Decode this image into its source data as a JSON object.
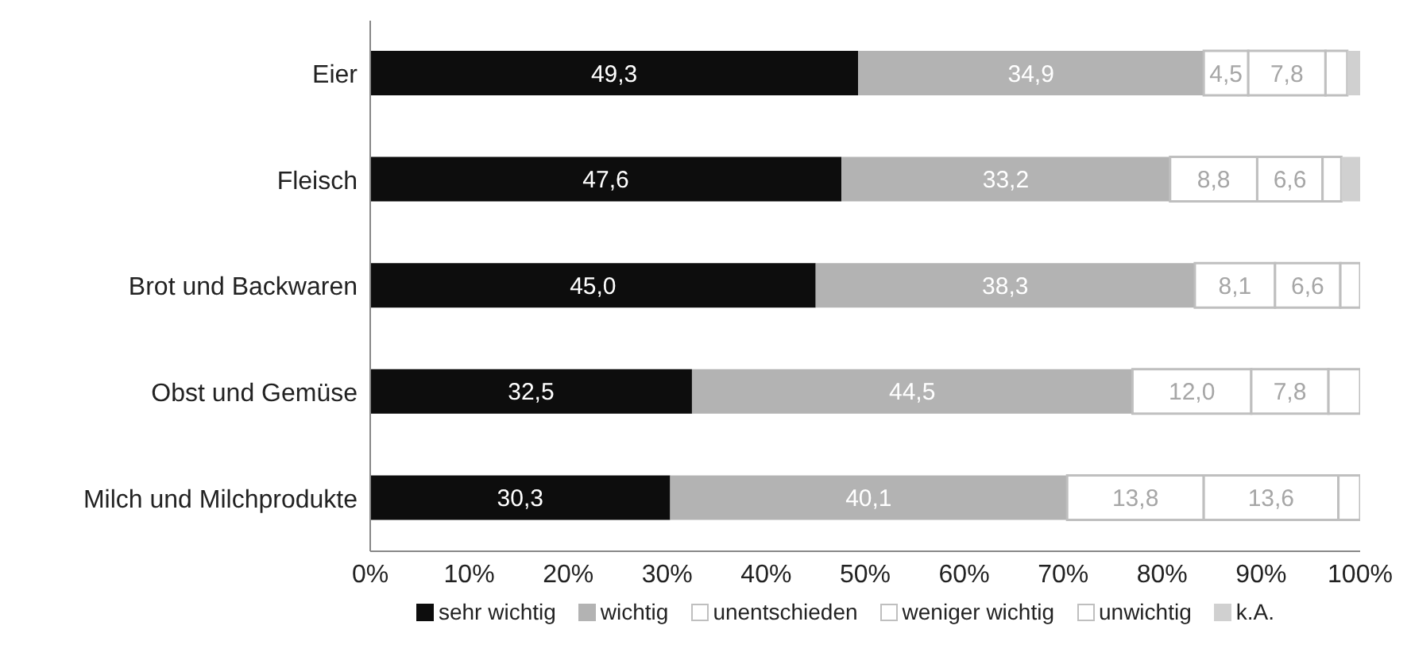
{
  "chart_data": {
    "type": "bar",
    "orientation": "horizontal",
    "stacked": true,
    "categories": [
      "Eier",
      "Fleisch",
      "Brot und Backwaren",
      "Obst und Gemüse",
      "Milch und Milchprodukte"
    ],
    "series": [
      {
        "name": "sehr wichtig",
        "color": "#0d0d0d",
        "values": [
          49.3,
          47.6,
          45.0,
          32.5,
          30.3
        ],
        "value_labels": [
          "49,3",
          "47,6",
          "45,0",
          "32,5",
          "30,3"
        ]
      },
      {
        "name": "wichtig",
        "color": "#b3b3b3",
        "values": [
          34.9,
          33.2,
          38.3,
          44.5,
          40.1
        ],
        "value_labels": [
          "34,9",
          "33,2",
          "38,3",
          "44,5",
          "40,1"
        ]
      },
      {
        "name": "unentschieden",
        "color": "#ffffff",
        "values": [
          4.5,
          8.8,
          8.1,
          12.0,
          13.8
        ],
        "value_labels": [
          "4,5",
          "8,8",
          "8,1",
          "12,0",
          "13,8"
        ]
      },
      {
        "name": "weniger wichtig",
        "color": "#ffffff",
        "values": [
          7.8,
          6.6,
          6.6,
          7.8,
          13.6
        ],
        "value_labels": [
          "7,8",
          "6,6",
          "6,6",
          "7,8",
          "13,6"
        ]
      },
      {
        "name": "unwichtig",
        "color": "#ffffff",
        "values": [
          2.2,
          1.9,
          2.0,
          3.2,
          2.2
        ]
      },
      {
        "name": "k.A.",
        "color": "#d0d0d0",
        "values": [
          1.3,
          1.9,
          0,
          0,
          0
        ]
      }
    ],
    "xlim": [
      0,
      100
    ],
    "xticks": [
      {
        "value": 0,
        "label": "0%"
      },
      {
        "value": 10,
        "label": "10%"
      },
      {
        "value": 20,
        "label": "20%"
      },
      {
        "value": 30,
        "label": "30%"
      },
      {
        "value": 40,
        "label": "40%"
      },
      {
        "value": 50,
        "label": "50%"
      },
      {
        "value": 60,
        "label": "60%"
      },
      {
        "value": 70,
        "label": "70%"
      },
      {
        "value": 80,
        "label": "80%"
      },
      {
        "value": 90,
        "label": "90%"
      },
      {
        "value": 100,
        "label": "100%"
      }
    ],
    "legend": "bottom",
    "grid": false
  }
}
